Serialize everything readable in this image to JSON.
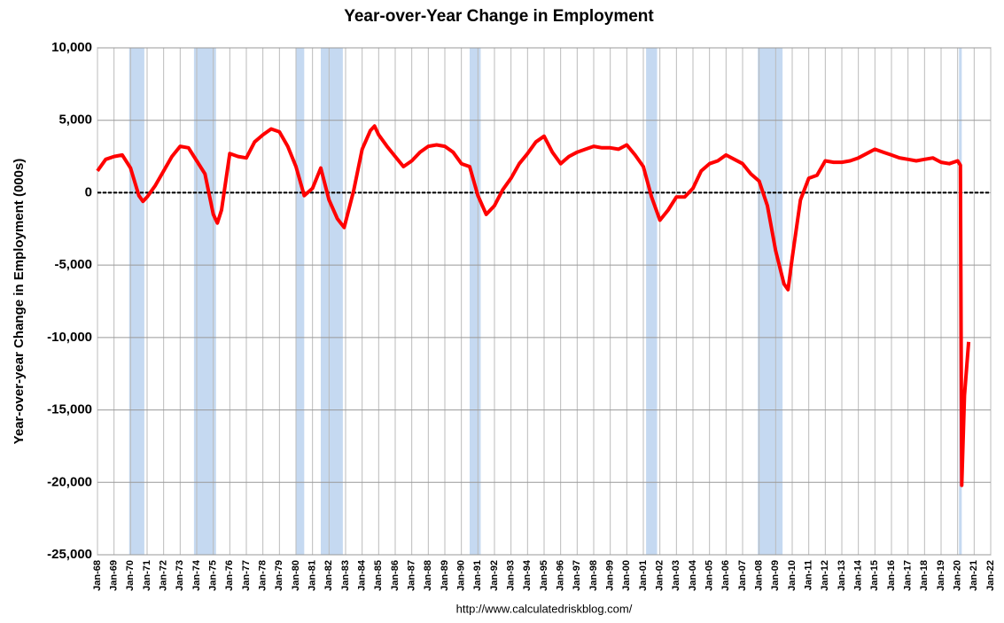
{
  "chart_data": {
    "type": "line",
    "title": "Year-over-Year Change in Employment",
    "ylabel": "Year-over-year Change in Employment (000s)",
    "source": "http://www.calculatedriskblog.com/",
    "xlim": [
      "Jan-68",
      "Jan-22"
    ],
    "xticks": [
      "Jan-68",
      "Jan-69",
      "Jan-70",
      "Jan-71",
      "Jan-72",
      "Jan-73",
      "Jan-74",
      "Jan-75",
      "Jan-76",
      "Jan-77",
      "Jan-78",
      "Jan-79",
      "Jan-80",
      "Jan-81",
      "Jan-82",
      "Jan-83",
      "Jan-84",
      "Jan-85",
      "Jan-86",
      "Jan-87",
      "Jan-88",
      "Jan-89",
      "Jan-90",
      "Jan-91",
      "Jan-92",
      "Jan-93",
      "Jan-94",
      "Jan-95",
      "Jan-96",
      "Jan-97",
      "Jan-98",
      "Jan-99",
      "Jan-00",
      "Jan-01",
      "Jan-02",
      "Jan-03",
      "Jan-04",
      "Jan-05",
      "Jan-06",
      "Jan-07",
      "Jan-08",
      "Jan-09",
      "Jan-10",
      "Jan-11",
      "Jan-12",
      "Jan-13",
      "Jan-14",
      "Jan-15",
      "Jan-16",
      "Jan-17",
      "Jan-18",
      "Jan-19",
      "Jan-20",
      "Jan-21",
      "Jan-22"
    ],
    "ylim": [
      -25000,
      10000
    ],
    "yticks": [
      {
        "value": -25000,
        "label": "-25,000"
      },
      {
        "value": -20000,
        "label": "-20,000"
      },
      {
        "value": -15000,
        "label": "-15,000"
      },
      {
        "value": -10000,
        "label": "-10,000"
      },
      {
        "value": -5000,
        "label": "-5,000"
      },
      0,
      {
        "value": 5000,
        "label": "5,000"
      },
      {
        "value": 10000,
        "label": "10,000"
      }
    ],
    "grid": true,
    "recession_color": "#c5d9f1",
    "recessions": [
      [
        "Dec-69",
        "Nov-70"
      ],
      [
        "Nov-73",
        "Mar-75"
      ],
      [
        "Jan-80",
        "Jul-80"
      ],
      [
        "Jul-81",
        "Nov-82"
      ],
      [
        "Jul-90",
        "Mar-91"
      ],
      [
        "Mar-01",
        "Nov-01"
      ],
      [
        "Dec-07",
        "Jun-09"
      ],
      [
        "Feb-20",
        "Apr-20"
      ]
    ],
    "series": [
      {
        "color": "#ff0000",
        "x": [
          "Jan-68",
          "Jul-68",
          "Jan-69",
          "Jul-69",
          "Jan-70",
          "Jul-70",
          "Oct-70",
          "Jan-71",
          "Jul-71",
          "Jan-72",
          "Jul-72",
          "Jan-73",
          "Jul-73",
          "Jan-74",
          "Jul-74",
          "Jan-75",
          "Apr-75",
          "Jul-75",
          "Jan-76",
          "Jul-76",
          "Jan-77",
          "Jul-77",
          "Jan-78",
          "Jul-78",
          "Jan-79",
          "Jul-79",
          "Jan-80",
          "Jul-80",
          "Jan-81",
          "Jul-81",
          "Jan-82",
          "Jul-82",
          "Dec-82",
          "Jul-83",
          "Jan-84",
          "Jul-84",
          "Oct-84",
          "Jan-85",
          "Jul-85",
          "Jan-86",
          "Jul-86",
          "Jan-87",
          "Jul-87",
          "Jan-88",
          "Jul-88",
          "Jan-89",
          "Jul-89",
          "Jan-90",
          "Jul-90",
          "Jan-91",
          "Jul-91",
          "Jan-92",
          "Jul-92",
          "Jan-93",
          "Jul-93",
          "Jan-94",
          "Jul-94",
          "Jan-95",
          "Jul-95",
          "Jan-96",
          "Jul-96",
          "Jan-97",
          "Jul-97",
          "Jan-98",
          "Jul-98",
          "Jan-99",
          "Jul-99",
          "Jan-00",
          "Jul-00",
          "Jan-01",
          "Jul-01",
          "Jan-02",
          "Jul-02",
          "Jan-03",
          "Jul-03",
          "Jan-04",
          "Jul-04",
          "Jan-05",
          "Jul-05",
          "Jan-06",
          "Jul-06",
          "Jan-07",
          "Jul-07",
          "Jan-08",
          "Jul-08",
          "Jan-09",
          "Jul-09",
          "Oct-09",
          "Jan-10",
          "Jul-10",
          "Jan-11",
          "Jul-11",
          "Jan-12",
          "Jul-12",
          "Jan-13",
          "Jul-13",
          "Jan-14",
          "Jul-14",
          "Jan-15",
          "Jul-15",
          "Jan-16",
          "Jul-16",
          "Jan-17",
          "Jul-17",
          "Jan-18",
          "Jul-18",
          "Jan-19",
          "Jul-19",
          "Jan-20",
          "Mar-20",
          "Apr-20",
          "Jun-20",
          "Sep-20"
        ],
        "values": [
          1500,
          2300,
          2500,
          2600,
          1700,
          -200,
          -600,
          -300,
          500,
          1500,
          2500,
          3200,
          3100,
          2200,
          1300,
          -1500,
          -2100,
          -1200,
          2700,
          2500,
          2400,
          3500,
          4000,
          4400,
          4200,
          3200,
          1800,
          -200,
          300,
          1700,
          -500,
          -1800,
          -2400,
          200,
          3000,
          4300,
          4600,
          4000,
          3200,
          2500,
          1800,
          2200,
          2800,
          3200,
          3300,
          3200,
          2800,
          2000,
          1800,
          -200,
          -1500,
          -900,
          200,
          1000,
          2000,
          2700,
          3500,
          3900,
          2800,
          2000,
          2500,
          2800,
          3000,
          3200,
          3100,
          3100,
          3000,
          3300,
          2600,
          1800,
          -300,
          -1900,
          -1200,
          -300,
          -300,
          300,
          1500,
          2000,
          2200,
          2600,
          2300,
          2000,
          1300,
          800,
          -900,
          -4000,
          -6300,
          -6700,
          -4500,
          -500,
          1000,
          1200,
          2200,
          2100,
          2100,
          2200,
          2400,
          2700,
          3000,
          2800,
          2600,
          2400,
          2300,
          2200,
          2300,
          2400,
          2100,
          2000,
          2200,
          1900,
          -20200,
          -14000,
          -10300
        ]
      }
    ]
  }
}
